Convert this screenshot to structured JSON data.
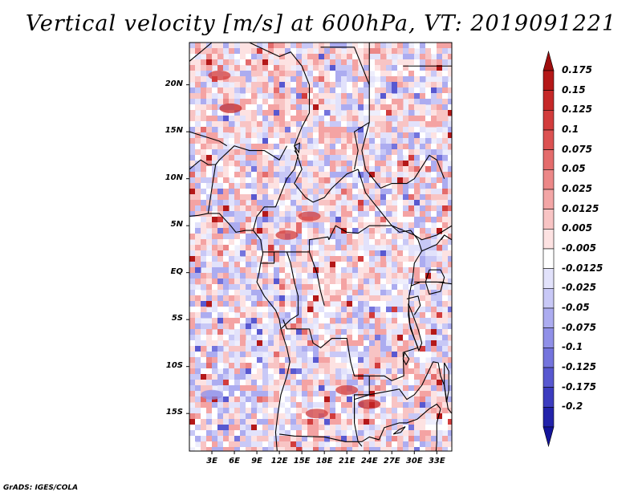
{
  "title": "Vertical velocity [m/s] at 600hPa, VT: 2019091221",
  "credit": "GrADS: IGES/COLA",
  "map": {
    "variable": "Vertical velocity",
    "units": "m/s",
    "level": "600hPa",
    "valid_time": "2019091221",
    "lon_range": [
      0,
      35
    ],
    "lat_range": [
      -19,
      24.5
    ],
    "lat_ticks": [
      {
        "label": "20N",
        "value": 20
      },
      {
        "label": "15N",
        "value": 15
      },
      {
        "label": "10N",
        "value": 10
      },
      {
        "label": "5N",
        "value": 5
      },
      {
        "label": "EQ",
        "value": 0
      },
      {
        "label": "5S",
        "value": -5
      },
      {
        "label": "10S",
        "value": -10
      },
      {
        "label": "15S",
        "value": -15
      }
    ],
    "lon_ticks": [
      {
        "label": "3E",
        "value": 3
      },
      {
        "label": "6E",
        "value": 6
      },
      {
        "label": "9E",
        "value": 9
      },
      {
        "label": "12E",
        "value": 12
      },
      {
        "label": "15E",
        "value": 15
      },
      {
        "label": "18E",
        "value": 18
      },
      {
        "label": "21E",
        "value": 21
      },
      {
        "label": "24E",
        "value": 24
      },
      {
        "label": "27E",
        "value": 27
      },
      {
        "label": "30E",
        "value": 30
      },
      {
        "label": "33E",
        "value": 33
      }
    ]
  },
  "colorbar": {
    "levels": [
      {
        "label": "0.175",
        "color": "#b41818"
      },
      {
        "label": "0.15",
        "color": "#c52828"
      },
      {
        "label": "0.125",
        "color": "#d23c3c"
      },
      {
        "label": "0.1",
        "color": "#dc5252"
      },
      {
        "label": "0.075",
        "color": "#e46c6c"
      },
      {
        "label": "0.05",
        "color": "#ec8888"
      },
      {
        "label": "0.025",
        "color": "#f3a6a6"
      },
      {
        "label": "0.0125",
        "color": "#f8c4c4"
      },
      {
        "label": "0.005",
        "color": "#fde2e2"
      },
      {
        "label": "-0.005",
        "color": "#ffffff"
      },
      {
        "label": "-0.0125",
        "color": "#e2e2fb"
      },
      {
        "label": "-0.025",
        "color": "#c8c8f6"
      },
      {
        "label": "-0.05",
        "color": "#acacf0"
      },
      {
        "label": "-0.075",
        "color": "#9090e8"
      },
      {
        "label": "-0.1",
        "color": "#7474dd"
      },
      {
        "label": "-0.125",
        "color": "#5858d0"
      },
      {
        "label": "-0.175",
        "color": "#3c3cbf"
      },
      {
        "label": "-0.2",
        "color": "#2323aa"
      }
    ],
    "top_extend_color": "#9e0e0e",
    "bottom_extend_color": "#14149a",
    "map_fill_colors": [
      "#f4a3a3",
      "#f8c4c4",
      "#fde2e2",
      "#ffffff",
      "#e2e2fb",
      "#c8c8f6",
      "#acacf0",
      "#9090e8",
      "#ec8888",
      "#e46c6c",
      "#7474dd",
      "#d23c3c",
      "#5858d0",
      "#b41818"
    ]
  }
}
